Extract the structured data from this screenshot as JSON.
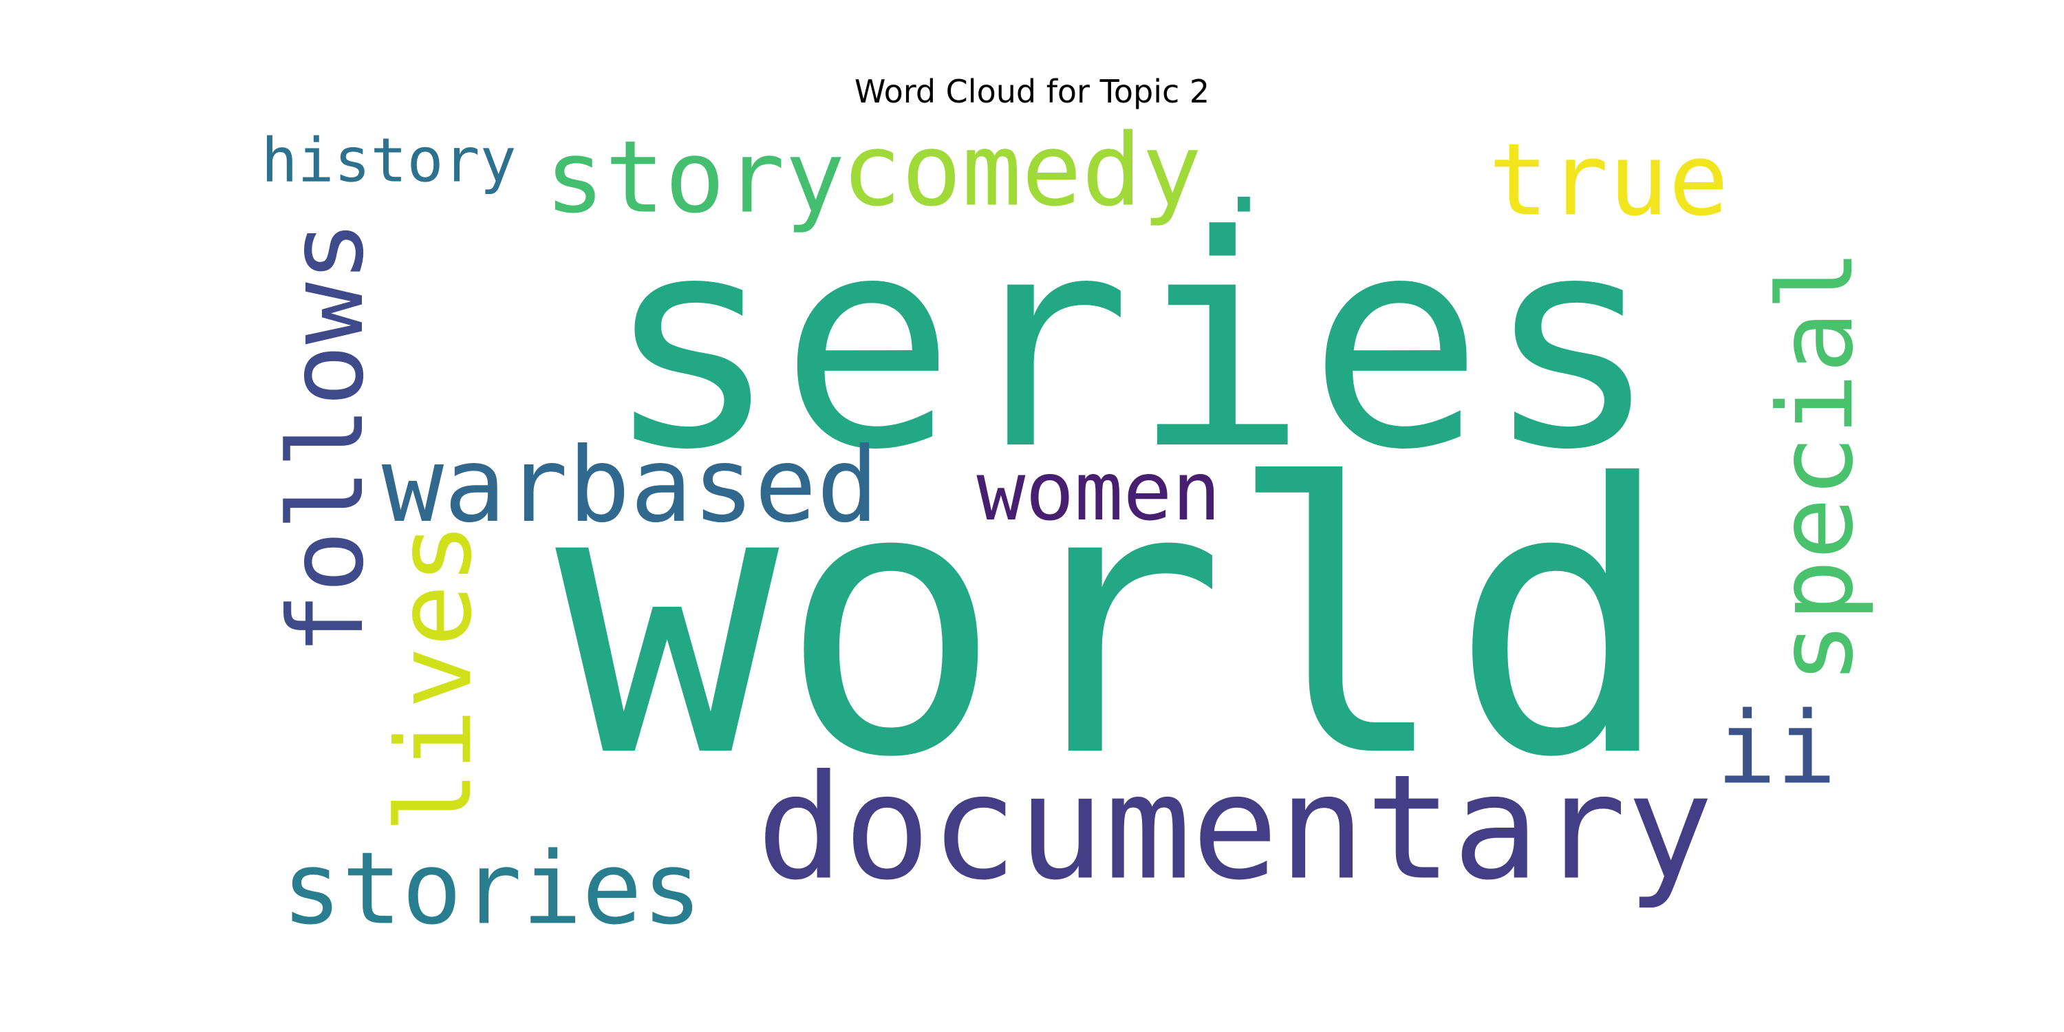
{
  "chart_data": {
    "type": "word_cloud",
    "title": "Word Cloud for Topic 2",
    "background": "#ffffff",
    "words": [
      {
        "text": "series",
        "color": "#22a884",
        "rotation": 0
      },
      {
        "text": "world",
        "color": "#22a884",
        "rotation": 0
      },
      {
        "text": "documentary",
        "color": "#433e85",
        "rotation": 0
      },
      {
        "text": "story",
        "color": "#44bf70",
        "rotation": 0
      },
      {
        "text": "comedy",
        "color": "#a0da39",
        "rotation": 0
      },
      {
        "text": "true",
        "color": "#f1e51d",
        "rotation": 0
      },
      {
        "text": "history",
        "color": "#2c728e",
        "rotation": 0
      },
      {
        "text": "follows",
        "color": "#3e4a89",
        "rotation": -90
      },
      {
        "text": "warbased",
        "color": "#31688e",
        "rotation": 0
      },
      {
        "text": "women",
        "color": "#481f70",
        "rotation": 0
      },
      {
        "text": "special",
        "color": "#4ac16d",
        "rotation": -90
      },
      {
        "text": "lives",
        "color": "#d0e11c",
        "rotation": -90
      },
      {
        "text": "stories",
        "color": "#287d8e",
        "rotation": 0
      },
      {
        "text": "ii",
        "color": "#3b528b",
        "rotation": 0
      },
      {
        "text": ".",
        "color": "#22a884",
        "rotation": 0
      }
    ]
  }
}
